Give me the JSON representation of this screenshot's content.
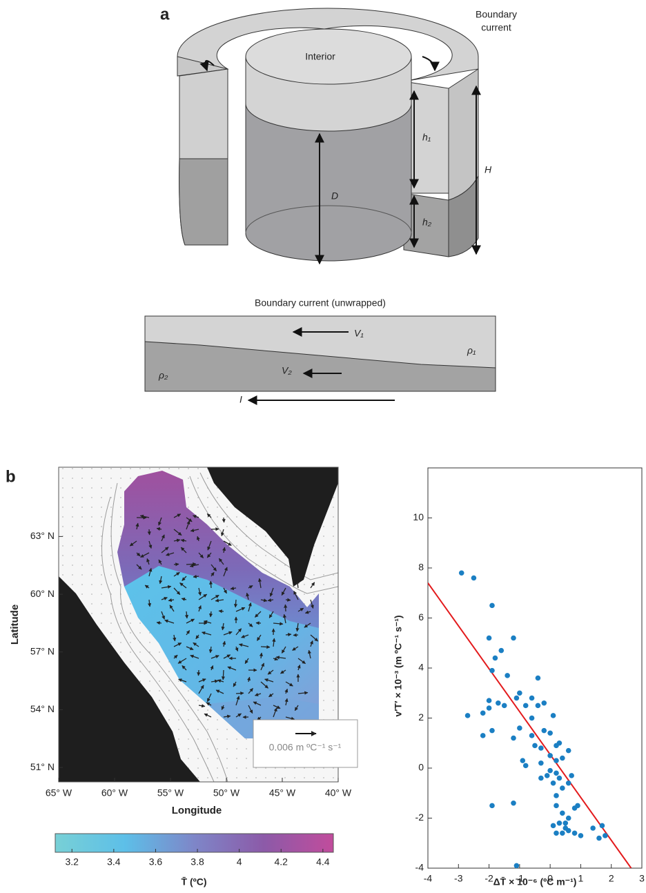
{
  "panel_a": {
    "label": "a",
    "boundary_label": [
      "Boundary",
      "current"
    ],
    "interior": "Interior",
    "h1": "h₁",
    "h2": "h₂",
    "H": "H",
    "D": "D",
    "unwrapped_title": "Boundary current (unwrapped)",
    "V1": "V₁",
    "V2": "V₂",
    "rho1": "ρ₁",
    "rho2": "ρ₂",
    "I": "I"
  },
  "panel_b": {
    "label": "b"
  },
  "map": {
    "xlabel": "Longitude",
    "ylabel": "Latitude",
    "xlim": [
      -65,
      -40
    ],
    "ylim": [
      50.25,
      66.6
    ],
    "xticks": [
      {
        "value": -65,
        "label": "65° W"
      },
      {
        "value": -60,
        "label": "60° W"
      },
      {
        "value": -55,
        "label": "55° W"
      },
      {
        "value": -50,
        "label": "50° W"
      },
      {
        "value": -45,
        "label": "45° W"
      },
      {
        "value": -40,
        "label": "40° W"
      }
    ],
    "yticks": [
      {
        "value": 51,
        "label": "51° N"
      },
      {
        "value": 54,
        "label": "54° N"
      },
      {
        "value": 57,
        "label": "57° N"
      },
      {
        "value": 60,
        "label": "60° N"
      },
      {
        "value": 63,
        "label": "63° N"
      }
    ],
    "vector_key": "0.006 m ºC⁻¹ s⁻¹",
    "colorbar": {
      "label": "T̄ (ºC)",
      "lim": [
        3.12,
        4.45
      ],
      "ticks": [
        3.2,
        3.4,
        3.6,
        3.8,
        4,
        4.2,
        4.4
      ]
    }
  },
  "chart_data": {
    "type": "scatter",
    "color": "#1b7fc3",
    "xlabel": "ΔT̄ × 10⁻⁶ (ºC m⁻¹)",
    "ylabel": "v′T′ × 10⁻³ (m ºC⁻¹ s⁻¹)",
    "xlim": [
      -4,
      3
    ],
    "ylim": [
      -4,
      12
    ],
    "xticks": [
      -4,
      -3,
      -2,
      -1,
      0,
      1,
      2,
      3
    ],
    "yticks": [
      -4,
      -2,
      0,
      2,
      4,
      6,
      8,
      10
    ],
    "x": [
      -2.9,
      -2.5,
      -1.9,
      -2.0,
      -1.2,
      -1.8,
      -1.6,
      -1.4,
      -1.9,
      -0.4,
      -2.7,
      -2.0,
      -2.0,
      -1.7,
      -1.5,
      -2.2,
      -2.2,
      -1.9,
      -1.1,
      -1.0,
      -0.6,
      -0.4,
      -0.8,
      -0.2,
      -0.6,
      0.1,
      -1.2,
      -1.0,
      -0.6,
      -0.2,
      0.0,
      -0.5,
      0.2,
      0.3,
      0.6,
      -0.3,
      0.0,
      0.2,
      0.4,
      -0.9,
      -0.8,
      -0.3,
      0.0,
      0.2,
      -0.3,
      -0.1,
      0.3,
      0.1,
      0.4,
      0.7,
      0.6,
      0.8,
      0.6,
      0.2,
      0.2,
      0.4,
      0.5,
      0.3,
      0.1,
      0.2,
      0.5,
      0.6,
      0.8,
      1.0,
      1.4,
      1.7,
      1.6,
      1.8,
      -1.2,
      -1.9,
      -1.1,
      0.4,
      0.9
    ],
    "values": [
      7.8,
      7.6,
      6.5,
      5.2,
      5.2,
      4.4,
      4.7,
      3.7,
      3.9,
      3.6,
      2.1,
      2.7,
      2.4,
      2.6,
      2.5,
      2.2,
      1.3,
      1.5,
      2.8,
      3.0,
      2.8,
      2.5,
      2.5,
      2.6,
      2.0,
      2.1,
      1.2,
      1.6,
      1.3,
      1.5,
      1.4,
      0.9,
      0.9,
      1.0,
      0.7,
      0.8,
      0.5,
      0.3,
      0.4,
      0.3,
      0.1,
      0.2,
      -0.1,
      -0.2,
      -0.4,
      -0.3,
      -0.4,
      -0.6,
      -0.8,
      -0.3,
      -0.6,
      -1.6,
      -2.0,
      -1.1,
      -1.5,
      -1.8,
      -2.2,
      -2.2,
      -2.3,
      -2.6,
      -2.4,
      -2.5,
      -2.6,
      -2.7,
      -2.4,
      -2.3,
      -2.8,
      -2.7,
      -1.4,
      -1.5,
      -3.9,
      -2.6,
      -1.5
    ],
    "fit": {
      "x": [
        -4,
        2.65
      ],
      "values": [
        7.4,
        -4
      ],
      "color": "#e31a1c"
    }
  }
}
